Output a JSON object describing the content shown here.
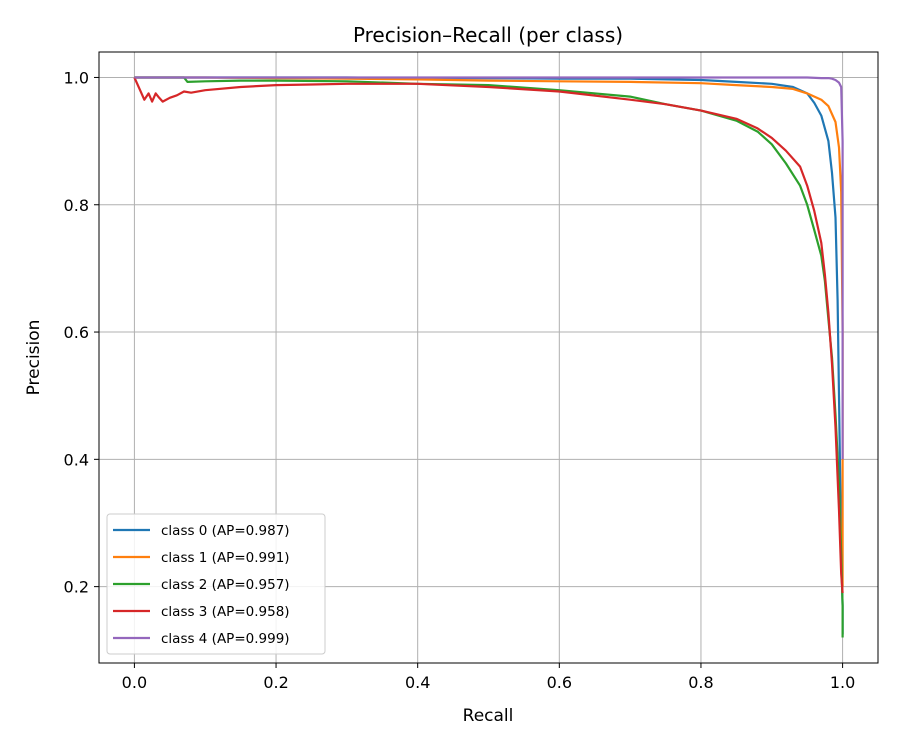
{
  "chart_data": {
    "type": "line",
    "title": "Precision–Recall (per class)",
    "xlabel": "Recall",
    "ylabel": "Precision",
    "xlim": [
      -0.05,
      1.05
    ],
    "ylim": [
      0.08,
      1.04
    ],
    "xticks": [
      0.0,
      0.2,
      0.4,
      0.6,
      0.8,
      1.0
    ],
    "xtick_labels": [
      "0.0",
      "0.2",
      "0.4",
      "0.6",
      "0.8",
      "1.0"
    ],
    "yticks": [
      0.2,
      0.4,
      0.6,
      0.8,
      1.0
    ],
    "ytick_labels": [
      "0.2",
      "0.4",
      "0.6",
      "0.8",
      "1.0"
    ],
    "grid": true,
    "legend_position": "lower-left",
    "series": [
      {
        "name": "class 0 (AP=0.987)",
        "color": "#1f77b4",
        "x": [
          0.0,
          0.1,
          0.2,
          0.3,
          0.4,
          0.5,
          0.6,
          0.7,
          0.8,
          0.85,
          0.9,
          0.93,
          0.95,
          0.96,
          0.97,
          0.98,
          0.985,
          0.99,
          0.993,
          0.995,
          0.997,
          0.998,
          1.0,
          1.0
        ],
        "y": [
          1.0,
          1.0,
          1.0,
          1.0,
          0.999,
          0.999,
          0.998,
          0.998,
          0.996,
          0.993,
          0.99,
          0.985,
          0.975,
          0.96,
          0.94,
          0.9,
          0.85,
          0.78,
          0.65,
          0.5,
          0.33,
          0.25,
          0.17,
          0.125
        ]
      },
      {
        "name": "class 1 (AP=0.991)",
        "color": "#ff7f0e",
        "x": [
          0.0,
          0.1,
          0.2,
          0.3,
          0.4,
          0.5,
          0.6,
          0.7,
          0.8,
          0.85,
          0.9,
          0.93,
          0.95,
          0.97,
          0.98,
          0.99,
          0.995,
          0.998,
          1.0,
          1.0
        ],
        "y": [
          1.0,
          1.0,
          0.999,
          0.998,
          0.997,
          0.995,
          0.994,
          0.993,
          0.991,
          0.988,
          0.985,
          0.982,
          0.975,
          0.965,
          0.955,
          0.93,
          0.89,
          0.82,
          0.6,
          0.2
        ]
      },
      {
        "name": "class 2 (AP=0.957)",
        "color": "#2ca02c",
        "x": [
          0.0,
          0.07,
          0.075,
          0.1,
          0.15,
          0.2,
          0.3,
          0.4,
          0.5,
          0.6,
          0.7,
          0.75,
          0.8,
          0.85,
          0.88,
          0.9,
          0.92,
          0.94,
          0.95,
          0.96,
          0.97,
          0.975,
          0.98,
          0.985,
          0.99,
          0.995,
          0.998,
          1.0,
          1.0
        ],
        "y": [
          1.0,
          1.0,
          0.993,
          0.994,
          0.995,
          0.995,
          0.994,
          0.99,
          0.988,
          0.98,
          0.97,
          0.958,
          0.948,
          0.932,
          0.915,
          0.895,
          0.865,
          0.83,
          0.8,
          0.76,
          0.72,
          0.68,
          0.62,
          0.56,
          0.47,
          0.36,
          0.25,
          0.17,
          0.12
        ]
      },
      {
        "name": "class 3 (AP=0.958)",
        "color": "#d62728",
        "x": [
          0.0,
          0.008,
          0.014,
          0.02,
          0.025,
          0.03,
          0.035,
          0.04,
          0.05,
          0.06,
          0.07,
          0.08,
          0.1,
          0.15,
          0.2,
          0.25,
          0.3,
          0.35,
          0.4,
          0.5,
          0.6,
          0.7,
          0.75,
          0.8,
          0.85,
          0.88,
          0.9,
          0.92,
          0.94,
          0.95,
          0.96,
          0.97,
          0.975,
          0.98,
          0.985,
          0.99,
          0.995,
          0.998,
          1.0,
          1.0
        ],
        "y": [
          1.0,
          0.98,
          0.965,
          0.975,
          0.962,
          0.975,
          0.968,
          0.962,
          0.968,
          0.972,
          0.978,
          0.976,
          0.98,
          0.985,
          0.988,
          0.989,
          0.99,
          0.99,
          0.99,
          0.985,
          0.978,
          0.965,
          0.958,
          0.948,
          0.935,
          0.92,
          0.905,
          0.885,
          0.86,
          0.83,
          0.79,
          0.74,
          0.69,
          0.63,
          0.55,
          0.45,
          0.32,
          0.22,
          0.19,
          0.19
        ]
      },
      {
        "name": "class 4 (AP=0.999)",
        "color": "#9467bd",
        "x": [
          0.0,
          0.2,
          0.4,
          0.6,
          0.8,
          0.9,
          0.95,
          0.97,
          0.98,
          0.985,
          0.99,
          0.995,
          0.998,
          1.0,
          1.0
        ],
        "y": [
          1.0,
          1.0,
          1.0,
          1.0,
          1.0,
          1.0,
          1.0,
          0.999,
          0.999,
          0.998,
          0.996,
          0.992,
          0.985,
          0.9,
          0.4
        ]
      }
    ]
  }
}
